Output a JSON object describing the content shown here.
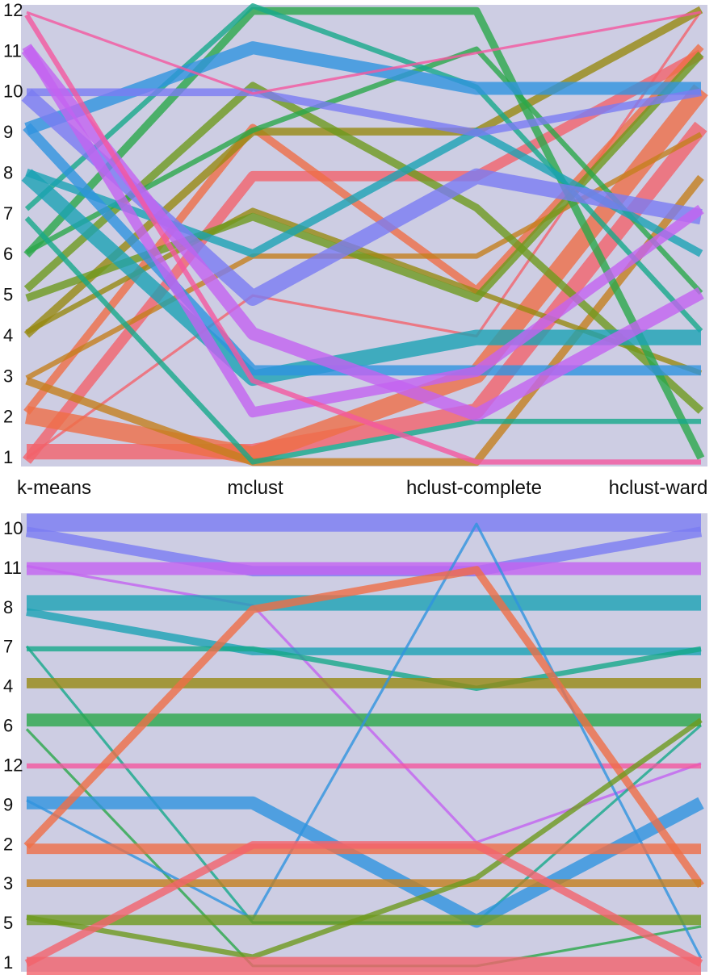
{
  "chart_data": [
    {
      "type": "parallel-sets",
      "axes": [
        "k-means",
        "mclust",
        "hclust-complete",
        "hclust-ward"
      ],
      "tick_labels": [
        "1",
        "2",
        "3",
        "4",
        "5",
        "6",
        "7",
        "8",
        "9",
        "10",
        "11",
        "12"
      ],
      "background": "#cdcde3",
      "category_colors": {
        "1": "#f2636b",
        "2": "#ef6e46",
        "3": "#c47f1e",
        "4": "#978a12",
        "5": "#6e9a1e",
        "6": "#2ba84a",
        "7": "#17a98a",
        "8": "#1ba3b4",
        "9": "#2f93de",
        "10": "#7b7cf2",
        "11": "#c363f0",
        "12": "#f4589f"
      },
      "flows": [
        {
          "cat": "1",
          "path": [
            "1",
            "1",
            "2",
            "9"
          ],
          "weight": 6
        },
        {
          "cat": "1",
          "path": [
            "1",
            "8",
            "8",
            "11"
          ],
          "weight": 4
        },
        {
          "cat": "1",
          "path": [
            "1",
            "5",
            "4",
            "12"
          ],
          "weight": 1
        },
        {
          "cat": "2",
          "path": [
            "2",
            "1",
            "3",
            "10"
          ],
          "weight": 7
        },
        {
          "cat": "2",
          "path": [
            "2",
            "9",
            "5",
            "11"
          ],
          "weight": 3
        },
        {
          "cat": "3",
          "path": [
            "3",
            "1",
            "1",
            "8"
          ],
          "weight": 3
        },
        {
          "cat": "3",
          "path": [
            "3",
            "6",
            "6",
            "9"
          ],
          "weight": 2
        },
        {
          "cat": "4",
          "path": [
            "4",
            "9",
            "9",
            "12"
          ],
          "weight": 3
        },
        {
          "cat": "4",
          "path": [
            "4",
            "7",
            "5",
            "3"
          ],
          "weight": 2
        },
        {
          "cat": "5",
          "path": [
            "5",
            "10",
            "7",
            "2"
          ],
          "weight": 3
        },
        {
          "cat": "5",
          "path": [
            "5",
            "7",
            "5",
            "11"
          ],
          "weight": 3
        },
        {
          "cat": "6",
          "path": [
            "6",
            "12",
            "12",
            "1"
          ],
          "weight": 3
        },
        {
          "cat": "6",
          "path": [
            "6",
            "9",
            "11",
            "5"
          ],
          "weight": 2
        },
        {
          "cat": "7",
          "path": [
            "7",
            "12",
            "10",
            "4"
          ],
          "weight": 2
        },
        {
          "cat": "7",
          "path": [
            "7",
            "1",
            "2",
            "2"
          ],
          "weight": 2
        },
        {
          "cat": "8",
          "path": [
            "8",
            "3",
            "4",
            "4"
          ],
          "weight": 6
        },
        {
          "cat": "8",
          "path": [
            "8",
            "6",
            "9",
            "6"
          ],
          "weight": 3
        },
        {
          "cat": "9",
          "path": [
            "9",
            "11",
            "10",
            "10"
          ],
          "weight": 5
        },
        {
          "cat": "9",
          "path": [
            "9",
            "3",
            "3",
            "3"
          ],
          "weight": 4
        },
        {
          "cat": "10",
          "path": [
            "10",
            "5",
            "8",
            "7"
          ],
          "weight": 6
        },
        {
          "cat": "10",
          "path": [
            "10",
            "10",
            "9",
            "10"
          ],
          "weight": 3
        },
        {
          "cat": "11",
          "path": [
            "11",
            "4",
            "2",
            "5"
          ],
          "weight": 5
        },
        {
          "cat": "11",
          "path": [
            "11",
            "2",
            "3",
            "7"
          ],
          "weight": 4
        },
        {
          "cat": "12",
          "path": [
            "12",
            "3",
            "1",
            "1"
          ],
          "weight": 2
        },
        {
          "cat": "12",
          "path": [
            "12",
            "10",
            "11",
            "12"
          ],
          "weight": 1
        }
      ]
    },
    {
      "type": "parallel-sets",
      "axes": [
        "k-means",
        "mclust",
        "hclust-complete",
        "hclust-ward"
      ],
      "tick_labels": [
        "10",
        "11",
        "8",
        "7",
        "4",
        "6",
        "12",
        "9",
        "2",
        "3",
        "5",
        "1"
      ],
      "background": "#cdcde3",
      "category_colors": {
        "10": "#7b7cf2",
        "11": "#c363f0",
        "8": "#1ba3b4",
        "7": "#17a98a",
        "4": "#978a12",
        "6": "#2ba84a",
        "12": "#f4589f",
        "9": "#2f93de",
        "2": "#ef6e46",
        "3": "#c47f1e",
        "5": "#6e9a1e",
        "1": "#f2636b"
      },
      "flows": [
        {
          "cat": "10",
          "path": [
            "10",
            "10",
            "10",
            "10"
          ],
          "weight": 7
        },
        {
          "cat": "10",
          "path": [
            "10",
            "11",
            "11",
            "10"
          ],
          "weight": 4
        },
        {
          "cat": "11",
          "path": [
            "11",
            "11",
            "11",
            "11"
          ],
          "weight": 5
        },
        {
          "cat": "11",
          "path": [
            "11",
            "8",
            "2",
            "12"
          ],
          "weight": 1
        },
        {
          "cat": "8",
          "path": [
            "8",
            "8",
            "8",
            "8"
          ],
          "weight": 6
        },
        {
          "cat": "8",
          "path": [
            "8",
            "7",
            "7",
            "7"
          ],
          "weight": 3
        },
        {
          "cat": "7",
          "path": [
            "7",
            "7",
            "4",
            "7"
          ],
          "weight": 2
        },
        {
          "cat": "7",
          "path": [
            "7",
            "5",
            "5",
            "6"
          ],
          "weight": 1
        },
        {
          "cat": "4",
          "path": [
            "4",
            "4",
            "4",
            "4"
          ],
          "weight": 4
        },
        {
          "cat": "6",
          "path": [
            "6",
            "6",
            "6",
            "6"
          ],
          "weight": 5
        },
        {
          "cat": "6",
          "path": [
            "6",
            "1",
            "1",
            "5"
          ],
          "weight": 1
        },
        {
          "cat": "12",
          "path": [
            "12",
            "12",
            "12",
            "12"
          ],
          "weight": 2
        },
        {
          "cat": "9",
          "path": [
            "9",
            "9",
            "5",
            "9"
          ],
          "weight": 5
        },
        {
          "cat": "9",
          "path": [
            "9",
            "5",
            "10",
            "1"
          ],
          "weight": 1
        },
        {
          "cat": "2",
          "path": [
            "2",
            "2",
            "2",
            "2"
          ],
          "weight": 4
        },
        {
          "cat": "2",
          "path": [
            "2",
            "8",
            "11",
            "3"
          ],
          "weight": 3
        },
        {
          "cat": "3",
          "path": [
            "3",
            "3",
            "3",
            "3"
          ],
          "weight": 3
        },
        {
          "cat": "5",
          "path": [
            "5",
            "5",
            "5",
            "5"
          ],
          "weight": 4
        },
        {
          "cat": "5",
          "path": [
            "5",
            "1",
            "3",
            "6"
          ],
          "weight": 2
        },
        {
          "cat": "1",
          "path": [
            "1",
            "1",
            "1",
            "1"
          ],
          "weight": 7
        },
        {
          "cat": "1",
          "path": [
            "1",
            "2",
            "2",
            "1"
          ],
          "weight": 3
        }
      ]
    }
  ]
}
